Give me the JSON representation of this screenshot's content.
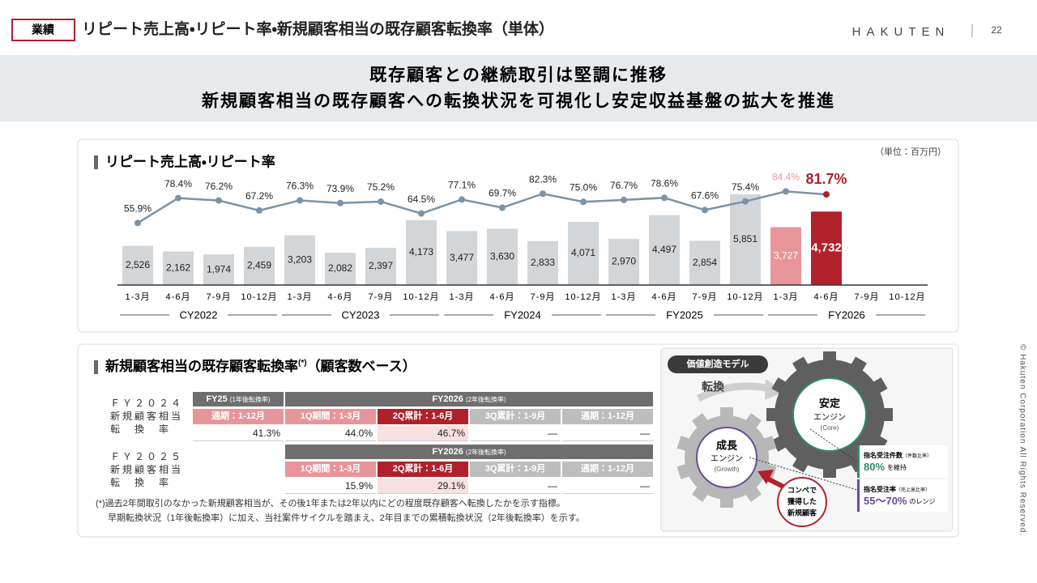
{
  "header": {
    "tag": "業績",
    "title": "リピート売上高・リピート率・新規顧客相当の既存顧客転換率（単体）",
    "logo": "HAKUTEN",
    "page": "22"
  },
  "banner": {
    "lines": [
      "既存顧客との継続取引は堅調に推移",
      "新規顧客相当の既存顧客への転換状況を可視化し安定収益基盤の拡大を推進"
    ]
  },
  "chart_data": {
    "type": "combo",
    "title": "リピート売上高・リピート率",
    "unit": "（単位：百万円）",
    "categories": [
      "1-3月",
      "4-6月",
      "7-9月",
      "10-12月",
      "1-3月",
      "4-6月",
      "7-9月",
      "10-12月",
      "1-3月",
      "4-6月",
      "7-9月",
      "10-12月",
      "1-3月",
      "4-6月",
      "7-9月",
      "10-12月",
      "1-3月",
      "4-6月",
      "7-9月",
      "10-12月"
    ],
    "groups": [
      "CY2022",
      "CY2023",
      "FY2024",
      "FY2025",
      "FY2026"
    ],
    "series": [
      {
        "type": "bar",
        "colors": [
          "#d3d6d9",
          "#d3d6d9",
          "#d3d6d9",
          "#d3d6d9",
          "#d3d6d9",
          "#d3d6d9",
          "#d3d6d9",
          "#d3d6d9",
          "#d3d6d9",
          "#d3d6d9",
          "#d3d6d9",
          "#d3d6d9",
          "#d3d6d9",
          "#d3d6d9",
          "#d3d6d9",
          "#d3d6d9",
          "#e8959a",
          "#b0212b",
          "#d3d6d9",
          "#d3d6d9"
        ],
        "values": [
          2526,
          2162,
          1974,
          2459,
          3203,
          2082,
          2397,
          4173,
          3477,
          3630,
          2833,
          4071,
          2970,
          4497,
          2854,
          5851,
          3727,
          4732,
          null,
          null
        ],
        "value_labels": [
          "2,526",
          "2,162",
          "1,974",
          "2,459",
          "3,203",
          "2,082",
          "2,397",
          "4,173",
          "3,477",
          "3,630",
          "2,833",
          "4,071",
          "2,970",
          "4,497",
          "2,854",
          "5,851",
          "3,727",
          "4,732",
          null,
          null
        ]
      },
      {
        "type": "line",
        "axis": "y2",
        "color": "#7b93a6",
        "values": [
          55.9,
          78.4,
          76.2,
          67.2,
          76.3,
          73.9,
          75.2,
          64.5,
          77.1,
          69.7,
          82.3,
          75.0,
          76.7,
          78.6,
          67.6,
          75.4,
          84.4,
          81.7,
          null,
          null
        ],
        "value_labels": [
          "55.9%",
          "78.4%",
          "76.2%",
          "67.2%",
          "76.3%",
          "73.9%",
          "75.2%",
          "64.5%",
          "77.1%",
          "69.7%",
          "82.3%",
          "75.0%",
          "76.7%",
          "78.6%",
          "67.6%",
          "75.4%",
          "84.4%",
          "81.7%",
          null,
          null
        ]
      }
    ],
    "ylim": [
      0,
      6000
    ],
    "y2lim": [
      0,
      100
    ]
  },
  "conversion": {
    "title": "新規顧客相当の既存顧客転換率",
    "title_note": "(*)",
    "title_suffix": "（顧客数ベース）",
    "tables": [
      {
        "row_label": [
          "ＦＹ２０２４",
          "新規顧客相当",
          "転　換　率"
        ],
        "groups": [
          {
            "label": "FY25",
            "note": "(1年後転換率)"
          },
          {
            "label": "FY2026",
            "note": "(2年後転換率)"
          }
        ],
        "columns": [
          "通期：1-12月",
          "1Q期間：1-3月",
          "2Q累計：1-6月",
          "3Q累計：1-9月",
          "通期：1-12月"
        ],
        "values": [
          "41.3%",
          "44.0%",
          "46.7%",
          "—",
          "—"
        ]
      },
      {
        "row_label": [
          "ＦＹ２０２５",
          "新規顧客相当",
          "転　換　率"
        ],
        "groups": [
          {
            "label": "FY2026",
            "note": "(2年後転換率)"
          }
        ],
        "columns": [
          "1Q期間：1-3月",
          "2Q累計：1-6月",
          "3Q累計：1-9月",
          "通期：1-12月"
        ],
        "values": [
          "15.9%",
          "29.1%",
          "—",
          "—"
        ]
      }
    ],
    "footnote": [
      "(*)過去2年間取引のなかった新規顧客相当が、その後1年または2年以内にどの程度既存顧客へ転換したかを示す指標。",
      "早期転換状況（1年後転換率）に加え、当社案件サイクルを踏まえ、2年目までの累積転換状況（2年後転換率）を示す。"
    ]
  },
  "model": {
    "title": "価値創造モデル",
    "arrow_label": "転換",
    "core": [
      "安定",
      "エンジン",
      "(Core)"
    ],
    "growth": [
      "成長",
      "エンジン",
      "(Growth)"
    ],
    "new_customers": [
      "コンペで",
      "獲得した",
      "新規顧客"
    ],
    "metrics": [
      {
        "label": "指名受注件数",
        "note": "（件数比率）",
        "value": "80%",
        "suffix": "を維持"
      },
      {
        "label": "指名受注率",
        "note": "（売上高比率）",
        "value": "55〜70%",
        "suffix": "のレンジ"
      }
    ]
  },
  "copyright": "© Hakuten Corporation All Rights Reserved."
}
